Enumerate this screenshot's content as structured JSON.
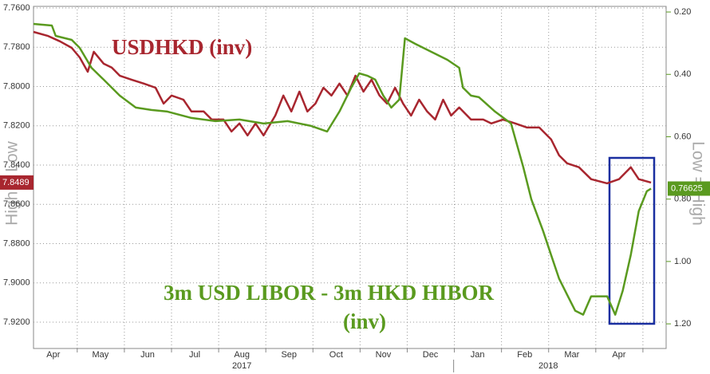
{
  "chart_data": {
    "type": "line",
    "ylabel": "High = Low",
    "y2label": "Low = High",
    "annotations": [
      "USDHKD (inv)",
      "3m USD LIBOR - 3m HKD HIBOR",
      "(inv)"
    ],
    "xlim": [
      -0.42,
      13.0
    ],
    "xticks": [
      {
        "value": 0,
        "label": "Apr"
      },
      {
        "value": 1,
        "label": "May"
      },
      {
        "value": 2,
        "label": "Jun"
      },
      {
        "value": 3,
        "label": "Jul"
      },
      {
        "value": 4,
        "label": "Aug"
      },
      {
        "value": 5,
        "label": "Sep"
      },
      {
        "value": 6,
        "label": "Oct"
      },
      {
        "value": 7,
        "label": "Nov"
      },
      {
        "value": 8,
        "label": "Dec"
      },
      {
        "value": 9,
        "label": "Jan"
      },
      {
        "value": 10,
        "label": "Feb"
      },
      {
        "value": 11,
        "label": "Mar"
      },
      {
        "value": 12,
        "label": "Apr"
      }
    ],
    "year_labels": [
      "2017",
      "2018"
    ],
    "ylim": [
      7.9334,
      7.7592
    ],
    "yticks": [
      {
        "value": 7.76,
        "label": "7.7600"
      },
      {
        "value": 7.78,
        "label": "7.7800"
      },
      {
        "value": 7.8,
        "label": "7.8000"
      },
      {
        "value": 7.82,
        "label": "7.8200"
      },
      {
        "value": 7.84,
        "label": "7.8400"
      },
      {
        "value": 7.86,
        "label": "7.8600"
      },
      {
        "value": 7.88,
        "label": "7.8800"
      },
      {
        "value": 7.9,
        "label": "7.9000"
      },
      {
        "value": 7.92,
        "label": "7.9200"
      }
    ],
    "y2lim": [
      1.279,
      0.182
    ],
    "y2ticks": [
      {
        "value": 0.2,
        "label": "0.20"
      },
      {
        "value": 0.4,
        "label": "0.40"
      },
      {
        "value": 0.6,
        "label": "0.60"
      },
      {
        "value": 0.8,
        "label": "0.80"
      },
      {
        "value": 1.0,
        "label": "1.00"
      },
      {
        "value": 1.2,
        "label": "1.20"
      }
    ],
    "grid": true,
    "series": [
      {
        "name": "USDHKD (inv)",
        "color": "#a8262f",
        "axis": "y",
        "last_label": "7.8489",
        "x": [
          -0.42,
          -0.12,
          0.14,
          0.39,
          0.56,
          0.73,
          0.86,
          1.07,
          1.24,
          1.41,
          1.66,
          1.92,
          2.17,
          2.34,
          2.51,
          2.76,
          2.93,
          3.19,
          3.36,
          3.61,
          3.78,
          3.95,
          4.12,
          4.29,
          4.46,
          4.71,
          4.88,
          5.05,
          5.22,
          5.39,
          5.56,
          5.73,
          5.9,
          6.07,
          6.24,
          6.41,
          6.58,
          6.75,
          6.92,
          7.08,
          7.25,
          7.42,
          7.59,
          7.76,
          7.93,
          8.1,
          8.27,
          8.44,
          8.61,
          8.86,
          9.12,
          9.29,
          9.54,
          9.8,
          10.05,
          10.31,
          10.56,
          10.73,
          10.9,
          11.15,
          11.41,
          11.75,
          12.0,
          12.25,
          12.42,
          12.68
        ],
        "values": [
          7.7722,
          7.7742,
          7.777,
          7.7803,
          7.7852,
          7.7925,
          7.7823,
          7.7884,
          7.7904,
          7.7945,
          7.7965,
          7.7985,
          7.8006,
          7.8087,
          7.8046,
          7.8067,
          7.8127,
          7.8127,
          7.8168,
          7.8168,
          7.8229,
          7.8188,
          7.8249,
          7.8188,
          7.8249,
          7.8148,
          7.8046,
          7.8127,
          7.8026,
          7.8127,
          7.8087,
          7.8006,
          7.8046,
          7.7985,
          7.8046,
          7.7945,
          7.8026,
          7.7965,
          7.8046,
          7.8087,
          7.8006,
          7.8087,
          7.8148,
          7.8067,
          7.8127,
          7.8168,
          7.8067,
          7.8148,
          7.8107,
          7.8168,
          7.8168,
          7.8188,
          7.8168,
          7.8188,
          7.8209,
          7.8209,
          7.8269,
          7.8351,
          7.8391,
          7.8411,
          7.8472,
          7.8493,
          7.8472,
          7.8411,
          7.8472,
          7.8489
        ]
      },
      {
        "name": "3m USD LIBOR - 3m HKD HIBOR",
        "color": "#5a9a1f",
        "axis": "y2",
        "last_label": "0.76625",
        "x": [
          -0.42,
          -0.03,
          0.05,
          0.39,
          0.56,
          0.81,
          1.07,
          1.41,
          1.75,
          2.08,
          2.42,
          2.93,
          3.44,
          3.95,
          4.46,
          4.97,
          5.47,
          5.81,
          6.07,
          6.32,
          6.49,
          6.66,
          6.83,
          7.0,
          7.17,
          7.34,
          7.46,
          7.68,
          8.02,
          8.36,
          8.61,
          8.69,
          8.86,
          9.03,
          9.37,
          9.71,
          9.97,
          10.14,
          10.39,
          10.56,
          10.73,
          10.9,
          11.07,
          11.24,
          11.41,
          11.75,
          11.92,
          12.08,
          12.25,
          12.42,
          12.59,
          12.68
        ],
        "values": [
          0.2383,
          0.2434,
          0.2766,
          0.2894,
          0.3149,
          0.3788,
          0.4171,
          0.4682,
          0.5065,
          0.5141,
          0.5193,
          0.5397,
          0.5499,
          0.5448,
          0.5576,
          0.5499,
          0.5652,
          0.5831,
          0.5193,
          0.4426,
          0.3967,
          0.4043,
          0.4171,
          0.4682,
          0.5065,
          0.4809,
          0.2843,
          0.3022,
          0.3277,
          0.3532,
          0.3788,
          0.4426,
          0.4682,
          0.4733,
          0.5193,
          0.5576,
          0.698,
          0.8002,
          0.9024,
          0.979,
          1.0556,
          1.1067,
          1.1578,
          1.1705,
          1.1118,
          1.1118,
          1.1705,
          1.0939,
          0.979,
          0.8385,
          0.7747,
          0.76625
        ]
      }
    ]
  }
}
